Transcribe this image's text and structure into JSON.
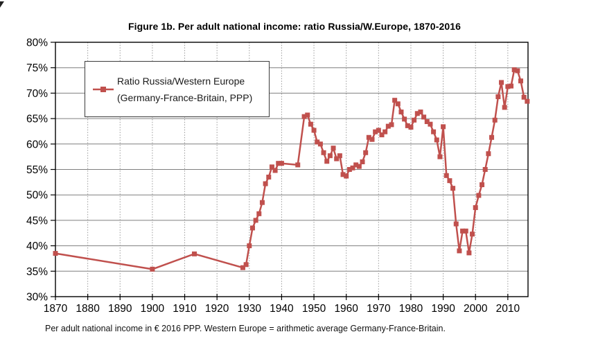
{
  "chart_data": {
    "type": "line",
    "title": "Figure 1b. Per adult national income: ratio Russia/W.Europe, 1870-2016",
    "legend_line1": "Ratio Russia/Western Europe",
    "legend_line2": "(Germany-France-Britain, PPP)",
    "footnote": "Per adult national income in € 2016 PPP. Western Europe = arithmetic average Germany-France-Britain.",
    "xlabel": "",
    "ylabel": "",
    "xlim": [
      1870,
      2016.25
    ],
    "ylim": [
      30,
      80
    ],
    "x_ticks": [
      1870,
      1880,
      1890,
      1900,
      1910,
      1920,
      1930,
      1940,
      1950,
      1960,
      1970,
      1980,
      1990,
      2000,
      2010
    ],
    "y_ticks": [
      30,
      35,
      40,
      45,
      50,
      55,
      60,
      65,
      70,
      75,
      80
    ],
    "y_tick_suffix": "%",
    "grid": true,
    "legend_position": "upper-left",
    "series": [
      {
        "name": "Ratio Russia/Western Europe (Germany-France-Britain, PPP)",
        "color": "#C0504D",
        "marker": "square",
        "points": [
          [
            1870,
            38.5
          ],
          [
            1900,
            35.4
          ],
          [
            1913,
            38.4
          ],
          [
            1928,
            35.7
          ],
          [
            1929,
            36.3
          ],
          [
            1930,
            40.0
          ],
          [
            1931,
            43.5
          ],
          [
            1932,
            45.0
          ],
          [
            1933,
            46.3
          ],
          [
            1934,
            48.5
          ],
          [
            1935,
            52.2
          ],
          [
            1936,
            53.5
          ],
          [
            1937,
            55.5
          ],
          [
            1938,
            54.8
          ],
          [
            1939,
            56.2
          ],
          [
            1940,
            56.2
          ],
          [
            1945,
            55.9
          ],
          [
            1947,
            65.4
          ],
          [
            1948,
            65.7
          ],
          [
            1949,
            63.9
          ],
          [
            1950,
            62.7
          ],
          [
            1951,
            60.4
          ],
          [
            1952,
            60.0
          ],
          [
            1953,
            58.3
          ],
          [
            1954,
            56.6
          ],
          [
            1955,
            57.7
          ],
          [
            1956,
            59.2
          ],
          [
            1957,
            57.1
          ],
          [
            1958,
            57.7
          ],
          [
            1959,
            54.0
          ],
          [
            1960,
            53.7
          ],
          [
            1961,
            55.0
          ],
          [
            1962,
            55.3
          ],
          [
            1963,
            55.9
          ],
          [
            1964,
            55.6
          ],
          [
            1965,
            56.5
          ],
          [
            1966,
            58.3
          ],
          [
            1967,
            61.3
          ],
          [
            1968,
            60.9
          ],
          [
            1969,
            62.4
          ],
          [
            1970,
            62.7
          ],
          [
            1971,
            61.8
          ],
          [
            1972,
            62.4
          ],
          [
            1973,
            63.5
          ],
          [
            1974,
            63.8
          ],
          [
            1975,
            68.6
          ],
          [
            1976,
            67.9
          ],
          [
            1977,
            66.3
          ],
          [
            1978,
            64.9
          ],
          [
            1979,
            63.6
          ],
          [
            1980,
            63.3
          ],
          [
            1981,
            64.7
          ],
          [
            1982,
            66.0
          ],
          [
            1983,
            66.3
          ],
          [
            1984,
            65.3
          ],
          [
            1985,
            64.4
          ],
          [
            1986,
            63.9
          ],
          [
            1987,
            62.4
          ],
          [
            1988,
            60.8
          ],
          [
            1989,
            57.5
          ],
          [
            1990,
            63.4
          ],
          [
            1991,
            53.8
          ],
          [
            1992,
            52.8
          ],
          [
            1993,
            51.3
          ],
          [
            1994,
            44.3
          ],
          [
            1995,
            39.0
          ],
          [
            1996,
            42.9
          ],
          [
            1997,
            42.9
          ],
          [
            1998,
            38.6
          ],
          [
            1999,
            42.3
          ],
          [
            2000,
            47.5
          ],
          [
            2001,
            49.9
          ],
          [
            2002,
            52.0
          ],
          [
            2003,
            55.0
          ],
          [
            2004,
            58.1
          ],
          [
            2005,
            61.3
          ],
          [
            2006,
            64.7
          ],
          [
            2007,
            69.3
          ],
          [
            2008,
            72.1
          ],
          [
            2009,
            67.2
          ],
          [
            2010,
            71.3
          ],
          [
            2011,
            71.4
          ],
          [
            2012,
            74.6
          ],
          [
            2013,
            74.4
          ],
          [
            2014,
            72.4
          ],
          [
            2015,
            69.2
          ],
          [
            2016,
            68.4
          ]
        ]
      }
    ],
    "colors": {
      "series": "#C0504D",
      "frame": "#000000",
      "h_grid": "#7f7f7f",
      "v_grid": "#999999",
      "text": "#000000"
    }
  }
}
